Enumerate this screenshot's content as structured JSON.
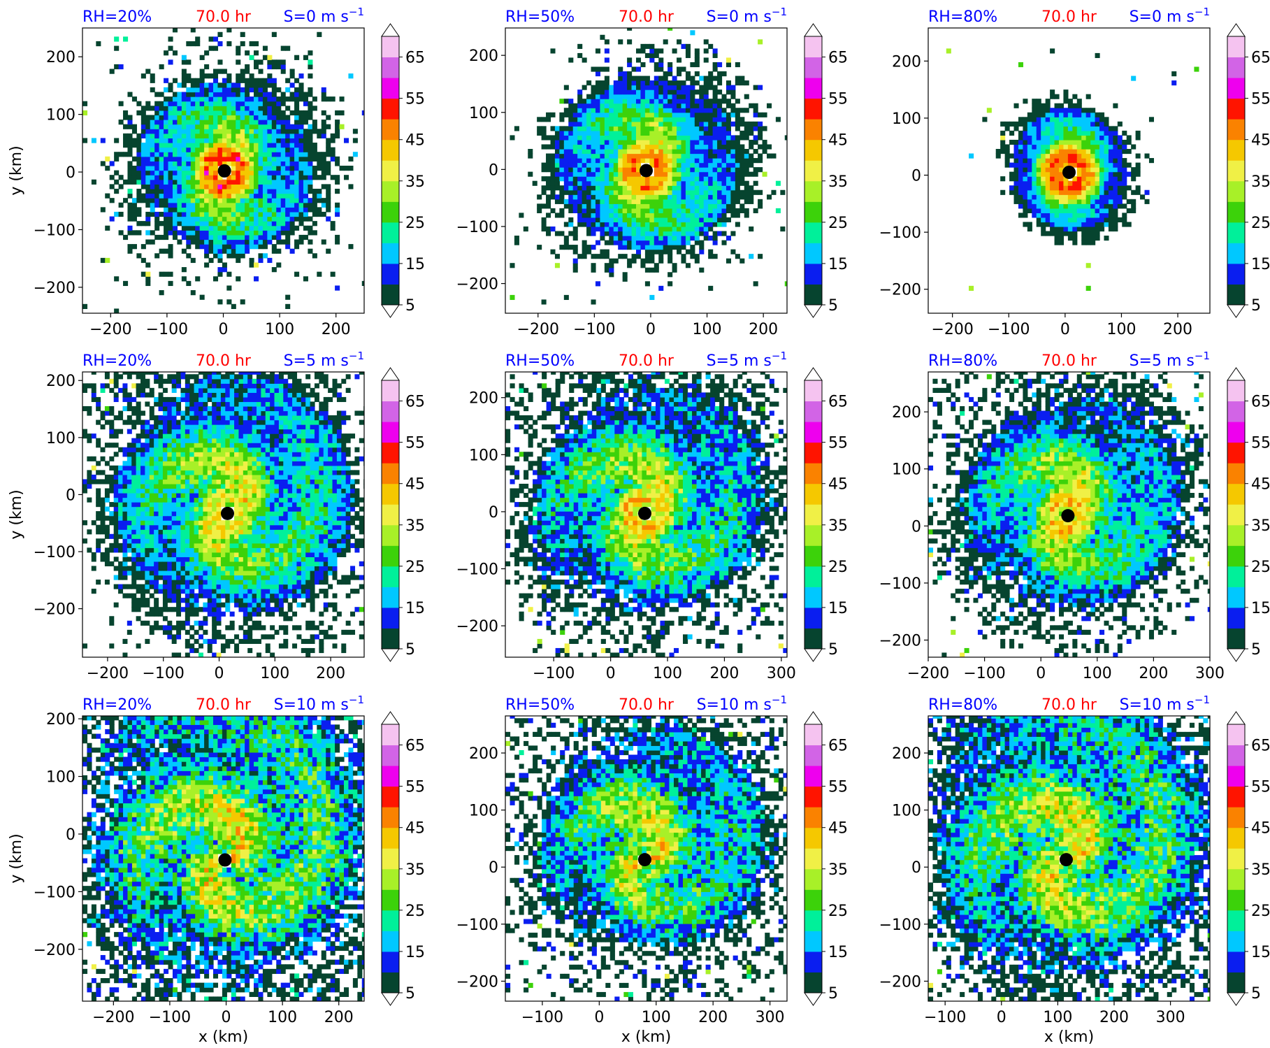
{
  "figure": {
    "colorbar": {
      "levels": [
        5,
        10,
        15,
        20,
        25,
        30,
        35,
        40,
        45,
        50,
        55,
        60,
        65,
        70
      ],
      "tick_labels": [
        "5",
        "15",
        "25",
        "35",
        "45",
        "55",
        "65"
      ],
      "colors": [
        "#06442f",
        "#0a1ef0",
        "#00c8ff",
        "#00f09a",
        "#3cd20a",
        "#a8f028",
        "#f0f046",
        "#f5c800",
        "#fa8200",
        "#ff1400",
        "#ee00ee",
        "#d264e6",
        "#f5c3f0"
      ],
      "extend": "both"
    },
    "center_marker_color": "#000000"
  },
  "chart_data": [
    {
      "type": "heatmap",
      "row": 0,
      "col": 0,
      "left_title": "RH=20%",
      "center_title": "70.0 hr",
      "right_title": "S=0 m s",
      "right_title_sup": "−1",
      "xlabel": "",
      "ylabel": "y (km)",
      "xlim": [
        -250,
        250
      ],
      "ylim": [
        -245,
        250
      ],
      "xticks": [
        -200,
        -100,
        0,
        100,
        200
      ],
      "xtick_labels": [
        "−200",
        "−100",
        "0",
        "100",
        "200"
      ],
      "yticks": [
        -200,
        -100,
        0,
        100,
        200
      ],
      "ytick_labels": [
        "−200",
        "−100",
        "0",
        "100",
        "200"
      ],
      "center": [
        2,
        2
      ],
      "peak_wind": 55,
      "extent_km": 160,
      "asymmetry": 0.2,
      "scatter": 0.4
    },
    {
      "type": "heatmap",
      "row": 0,
      "col": 1,
      "left_title": "RH=50%",
      "center_title": "70.0 hr",
      "right_title": "S=0 m s",
      "right_title_sup": "−1",
      "xlabel": "",
      "ylabel": "",
      "xlim": [
        -258,
        242
      ],
      "ylim": [
        -252,
        248
      ],
      "xticks": [
        -200,
        -100,
        0,
        100,
        200
      ],
      "xtick_labels": [
        "−200",
        "−100",
        "0",
        "100",
        "200"
      ],
      "yticks": [
        -200,
        -100,
        0,
        100,
        200
      ],
      "ytick_labels": [
        "−200",
        "−100",
        "0",
        "100",
        "200"
      ],
      "center": [
        -8,
        -2
      ],
      "peak_wind": 55,
      "extent_km": 160,
      "asymmetry": 0.3,
      "scatter": 0.3
    },
    {
      "type": "heatmap",
      "row": 0,
      "col": 2,
      "left_title": "RH=80%",
      "center_title": "70.0 hr",
      "right_title": "S=0 m s",
      "right_title_sup": "−1",
      "xlabel": "",
      "ylabel": "",
      "xlim": [
        -243,
        257
      ],
      "ylim": [
        -242,
        258
      ],
      "xticks": [
        -200,
        -100,
        0,
        100,
        200
      ],
      "xtick_labels": [
        "−200",
        "−100",
        "0",
        "100",
        "200"
      ],
      "yticks": [
        -200,
        -100,
        0,
        100,
        200
      ],
      "ytick_labels": [
        "−200",
        "−100",
        "0",
        "100",
        "200"
      ],
      "center": [
        7,
        5
      ],
      "peak_wind": 55,
      "extent_km": 110,
      "asymmetry": 0.2,
      "scatter": 0.1
    },
    {
      "type": "heatmap",
      "row": 1,
      "col": 0,
      "left_title": "RH=20%",
      "center_title": "70.0 hr",
      "right_title": "S=5 m s",
      "right_title_sup": "−1",
      "xlabel": "",
      "ylabel": "y (km)",
      "xlim": [
        -245,
        260
      ],
      "ylim": [
        -285,
        215
      ],
      "xticks": [
        -200,
        -100,
        0,
        100,
        200
      ],
      "xtick_labels": [
        "−200",
        "−100",
        "0",
        "100",
        "200"
      ],
      "yticks": [
        -200,
        -100,
        0,
        100,
        200
      ],
      "ytick_labels": [
        "−200",
        "−100",
        "0",
        "100",
        "200"
      ],
      "center": [
        15,
        -33
      ],
      "peak_wind": 55,
      "extent_km": 200,
      "asymmetry": 0.6,
      "scatter": 0.5
    },
    {
      "type": "heatmap",
      "row": 1,
      "col": 1,
      "left_title": "RH=50%",
      "center_title": "70.0 hr",
      "right_title": "S=5 m s",
      "right_title_sup": "−1",
      "xlabel": "",
      "ylabel": "",
      "xlim": [
        -185,
        310
      ],
      "ylim": [
        -255,
        245
      ],
      "xticks": [
        -100,
        0,
        100,
        200,
        300
      ],
      "xtick_labels": [
        "−100",
        "0",
        "100",
        "200",
        "300"
      ],
      "yticks": [
        -200,
        -100,
        0,
        100,
        200
      ],
      "ytick_labels": [
        "−200",
        "−100",
        "0",
        "100",
        "200"
      ],
      "center": [
        60,
        -3
      ],
      "peak_wind": 55,
      "extent_km": 190,
      "asymmetry": 0.5,
      "scatter": 0.6
    },
    {
      "type": "heatmap",
      "row": 1,
      "col": 2,
      "left_title": "RH=80%",
      "center_title": "70.0 hr",
      "right_title": "S=5 m s",
      "right_title_sup": "−1",
      "xlabel": "",
      "ylabel": "",
      "xlim": [
        -200,
        300
      ],
      "ylim": [
        -230,
        270
      ],
      "xticks": [
        -200,
        -100,
        0,
        100,
        200,
        300
      ],
      "xtick_labels": [
        "−200",
        "−100",
        "0",
        "100",
        "200",
        "300"
      ],
      "yticks": [
        -200,
        -100,
        0,
        100,
        200
      ],
      "ytick_labels": [
        "−200",
        "−100",
        "0",
        "100",
        "200"
      ],
      "center": [
        48,
        18
      ],
      "peak_wind": 55,
      "extent_km": 180,
      "asymmetry": 0.5,
      "scatter": 0.5
    },
    {
      "type": "heatmap",
      "row": 2,
      "col": 0,
      "left_title": "RH=20%",
      "center_title": "70.0 hr",
      "right_title": "S=10 m s",
      "right_title_sup": "−1",
      "xlabel": "x (km)",
      "ylabel": "y (km)",
      "xlim": [
        -255,
        245
      ],
      "ylim": [
        -290,
        205
      ],
      "xticks": [
        -200,
        -100,
        0,
        100,
        200
      ],
      "xtick_labels": [
        "−200",
        "−100",
        "0",
        "100",
        "200"
      ],
      "yticks": [
        -200,
        -100,
        0,
        100,
        200
      ],
      "ytick_labels": [
        "−200",
        "−100",
        "0",
        "100",
        "200"
      ],
      "center": [
        -2,
        -45
      ],
      "peak_wind": 45,
      "extent_km": 220,
      "asymmetry": 1.0,
      "scatter": 0.9
    },
    {
      "type": "heatmap",
      "row": 2,
      "col": 1,
      "left_title": "RH=50%",
      "center_title": "70.0 hr",
      "right_title": "S=10 m s",
      "right_title_sup": "−1",
      "xlabel": "x (km)",
      "ylabel": "",
      "xlim": [
        -165,
        330
      ],
      "ylim": [
        -235,
        265
      ],
      "xticks": [
        -100,
        0,
        100,
        200,
        300
      ],
      "xtick_labels": [
        "−100",
        "0",
        "100",
        "200",
        "300"
      ],
      "yticks": [
        -200,
        -100,
        0,
        100,
        200
      ],
      "ytick_labels": [
        "−200",
        "−100",
        "0",
        "100",
        "200"
      ],
      "center": [
        80,
        13
      ],
      "peak_wind": 55,
      "extent_km": 170,
      "asymmetry": 0.9,
      "scatter": 0.7
    },
    {
      "type": "heatmap",
      "row": 2,
      "col": 2,
      "left_title": "RH=80%",
      "center_title": "70.0 hr",
      "right_title": "S=10 m s",
      "right_title_sup": "−1",
      "xlabel": "x (km)",
      "ylabel": "",
      "xlim": [
        -130,
        370
      ],
      "ylim": [
        -235,
        265
      ],
      "xticks": [
        -100,
        0,
        100,
        200,
        300
      ],
      "xtick_labels": [
        "−100",
        "0",
        "100",
        "200",
        "300"
      ],
      "yticks": [
        -200,
        -100,
        0,
        100,
        200
      ],
      "ytick_labels": [
        "−200",
        "−100",
        "0",
        "100",
        "200"
      ],
      "center": [
        115,
        13
      ],
      "peak_wind": 55,
      "extent_km": 220,
      "asymmetry": 0.9,
      "scatter": 0.8
    }
  ]
}
